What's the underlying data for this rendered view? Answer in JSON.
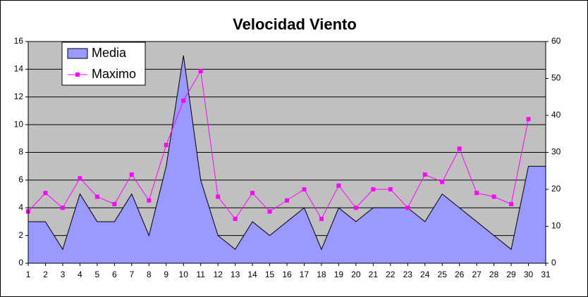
{
  "chart_data": {
    "type": "area-line",
    "title": "Velocidad Viento",
    "categories": [
      "1",
      "2",
      "3",
      "4",
      "5",
      "6",
      "7",
      "8",
      "9",
      "10",
      "11",
      "12",
      "13",
      "14",
      "15",
      "16",
      "17",
      "18",
      "19",
      "20",
      "21",
      "22",
      "23",
      "24",
      "25",
      "26",
      "27",
      "28",
      "29",
      "30",
      "31"
    ],
    "series": [
      {
        "name": "Media",
        "color": "#9999ff",
        "type": "area",
        "axis": "y",
        "values": [
          3,
          3,
          1,
          5,
          3,
          3,
          5,
          2,
          7,
          15,
          6,
          2,
          1,
          3,
          2,
          3,
          4,
          1,
          4,
          3,
          4,
          4,
          4,
          3,
          5,
          4,
          3,
          2,
          1,
          7,
          7
        ]
      },
      {
        "name": "Maximo",
        "color": "#ff00ff",
        "type": "line",
        "axis": "y2",
        "values": [
          14,
          19,
          15,
          23,
          18,
          16,
          24,
          17,
          32,
          44,
          52,
          18,
          12,
          19,
          14,
          17,
          20,
          12,
          21,
          15,
          20,
          20,
          15,
          24,
          22,
          31,
          19,
          18,
          16,
          39,
          null
        ]
      }
    ],
    "ylim": [
      0,
      16
    ],
    "yticks": [
      0,
      2,
      4,
      6,
      8,
      10,
      12,
      14,
      16
    ],
    "y2lim": [
      0,
      60
    ],
    "y2ticks": [
      0,
      10,
      20,
      30,
      40,
      50,
      60
    ],
    "grid": true,
    "legend": "top-left",
    "background": "#c0c0c0"
  }
}
